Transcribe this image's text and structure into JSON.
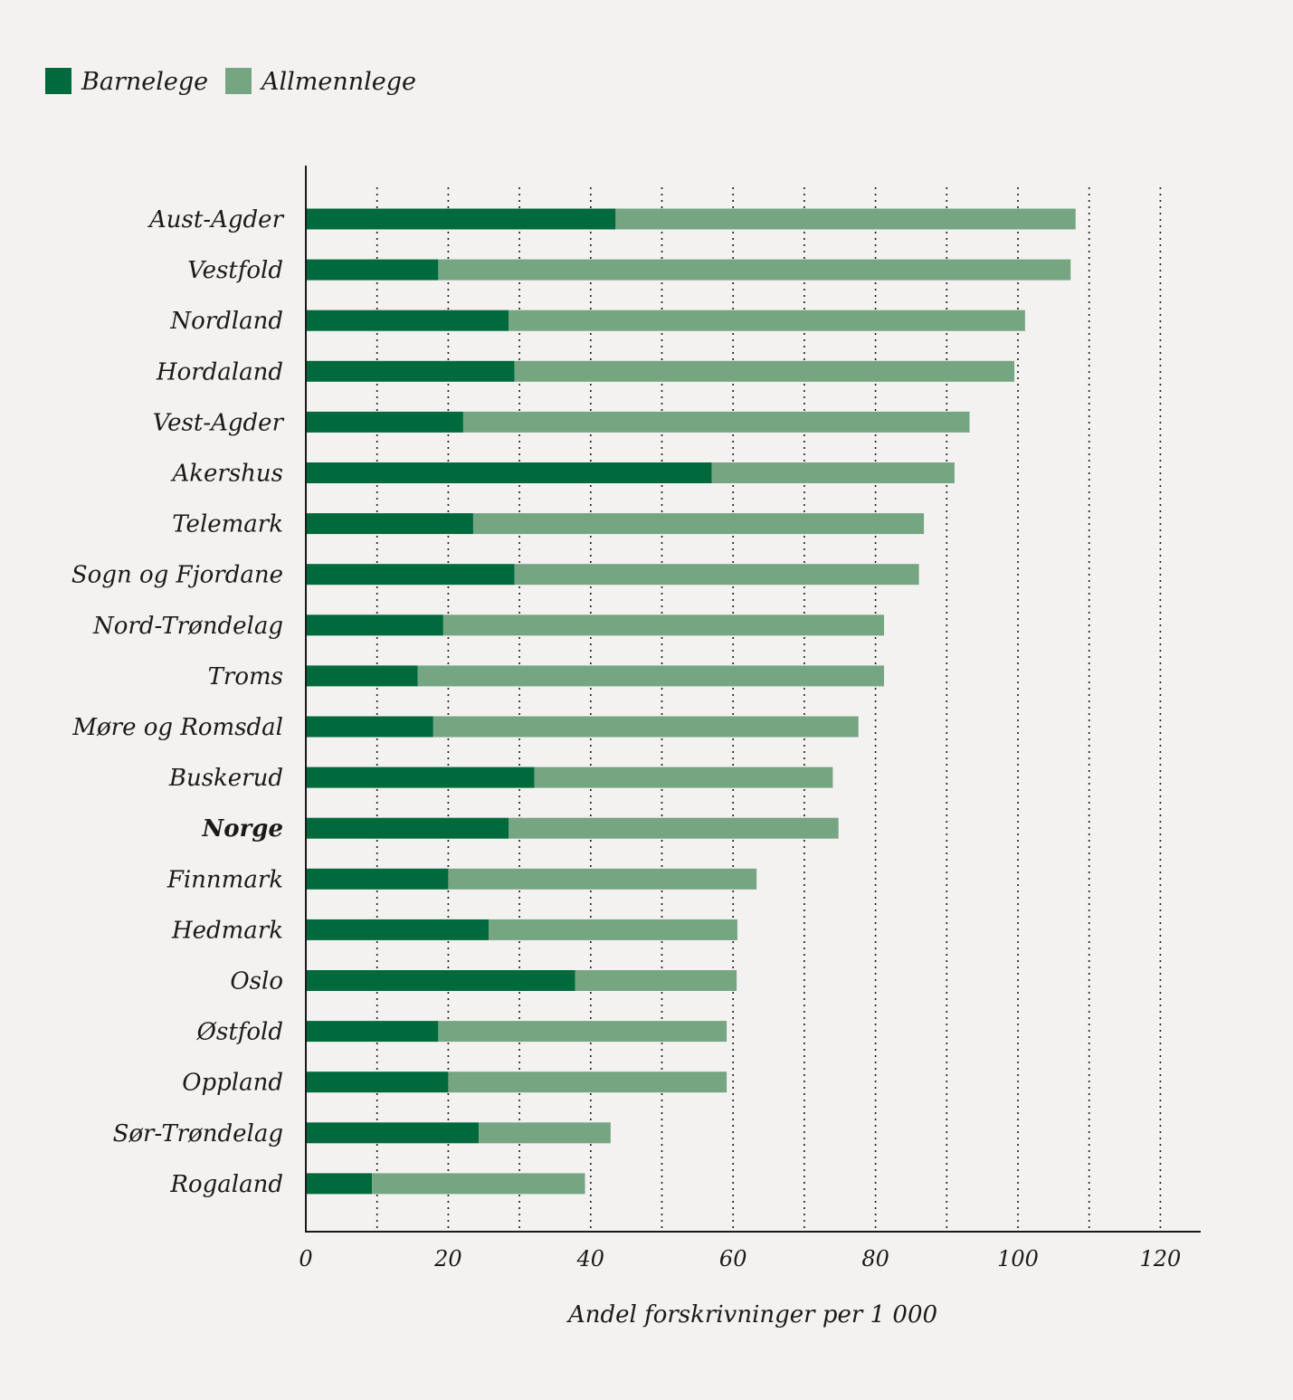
{
  "chart_data": {
    "type": "bar",
    "orientation": "horizontal",
    "stacked": true,
    "title": "",
    "xlabel": "Andel forskrivninger per 1 000",
    "ylabel": "",
    "xlim": [
      0,
      120
    ],
    "xticks": [
      0,
      20,
      40,
      60,
      80,
      100,
      120
    ],
    "grid": "vertical dotted",
    "legend_position": "top-left",
    "categories": [
      "Aust-Agder",
      "Vestfold",
      "Nordland",
      "Hordaland",
      "Vest-Agder",
      "Akershus",
      "Telemark",
      "Sogn og Fjordane",
      "Nord-Trøndelag",
      "Troms",
      "Møre og Romsdal",
      "Buskerud",
      "Norge",
      "Finnmark",
      "Hedmark",
      "Oslo",
      "Østfold",
      "Oppland",
      "Sør-Trøndelag",
      "Rogaland"
    ],
    "highlight_category": "Norge",
    "series": [
      {
        "name": "Barnelege",
        "color": "#006a3c",
        "values": [
          43.5,
          18.6,
          28.5,
          29.3,
          22.1,
          57.0,
          23.5,
          29.3,
          19.3,
          15.7,
          17.9,
          32.1,
          28.5,
          20.0,
          25.7,
          37.8,
          18.6,
          20.0,
          24.3,
          9.3
        ]
      },
      {
        "name": "Allmennlege",
        "color": "#76a582",
        "values": [
          64.6,
          88.8,
          72.5,
          70.2,
          71.1,
          34.1,
          63.3,
          56.8,
          61.9,
          65.5,
          59.7,
          41.9,
          46.3,
          43.3,
          34.9,
          22.7,
          40.5,
          39.1,
          18.5,
          29.9
        ]
      }
    ]
  }
}
